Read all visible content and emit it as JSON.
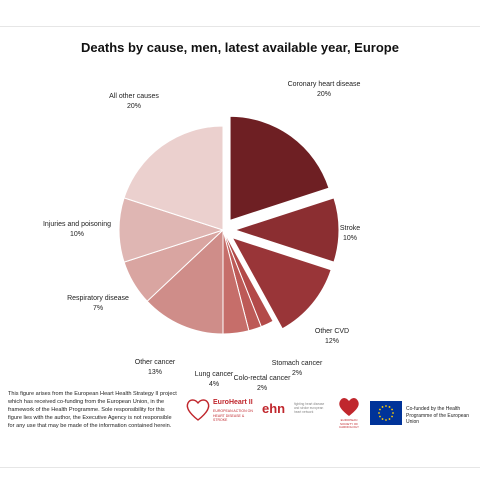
{
  "chart_data": {
    "type": "pie",
    "title": "Deaths by cause, men, latest available year, Europe",
    "slices": [
      {
        "label": "Coronary heart disease",
        "value": 20,
        "pct_text": "20%",
        "color": "#6e1f23",
        "exploded": true
      },
      {
        "label": "Stroke",
        "value": 10,
        "pct_text": "10%",
        "color": "#8b2e31",
        "exploded": true
      },
      {
        "label": "Other CVD",
        "value": 12,
        "pct_text": "12%",
        "color": "#993538",
        "exploded": true
      },
      {
        "label": "Stomach cancer",
        "value": 2,
        "pct_text": "2%",
        "color": "#b34a49",
        "exploded": false
      },
      {
        "label": "Colo-rectal cancer",
        "value": 2,
        "pct_text": "2%",
        "color": "#bd5a57",
        "exploded": false
      },
      {
        "label": "Lung cancer",
        "value": 4,
        "pct_text": "4%",
        "color": "#c66e6a",
        "exploded": false
      },
      {
        "label": "Other cancer",
        "value": 13,
        "pct_text": "13%",
        "color": "#cf8d89",
        "exploded": false
      },
      {
        "label": "Respiratory disease",
        "value": 7,
        "pct_text": "7%",
        "color": "#d9a5a1",
        "exploded": false
      },
      {
        "label": "Injuries and poisoning",
        "value": 10,
        "pct_text": "10%",
        "color": "#dfb6b3",
        "exploded": false
      },
      {
        "label": "All other causes",
        "value": 20,
        "pct_text": "20%",
        "color": "#ebd0ce",
        "exploded": false
      }
    ]
  },
  "footnote": "This figure arises from the European Heart Health Strategy II project which has received co-funding from the European Union, in the framework of the Health Programme. Sole responsibility for this figure lies with the author, the Executive Agency is not responsible for any use that may be made of the information contained herein.",
  "logos": {
    "euroheart_name": "EuroHeart II",
    "euroheart_sub": "EUROPEAN ACTION ON HEART DISEASE & STROKE",
    "ehn_name": "ehn",
    "ehn_sub": "fighting heart disease and stroke european heart network",
    "esc_name": "EUROPEAN SOCIETY OF CARDIOLOGY",
    "eu_text": "Co-funded by the Health Programme of the European Union",
    "colors": {
      "brand_red": "#c0272d",
      "eu_blue": "#003399",
      "eu_star": "#ffcc00"
    }
  }
}
